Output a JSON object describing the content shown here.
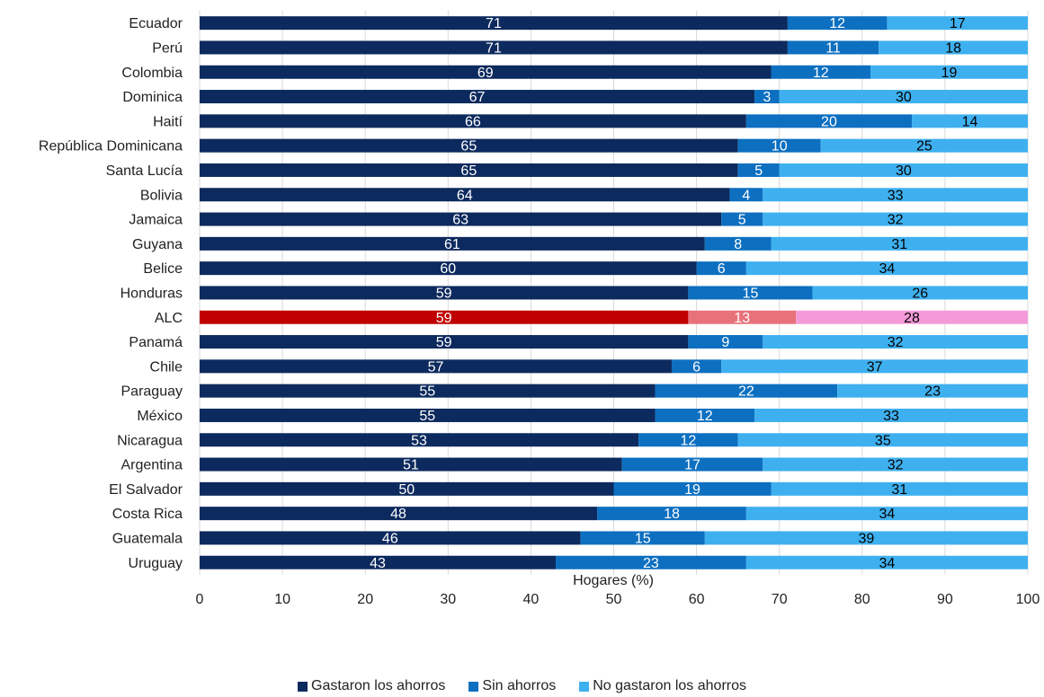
{
  "chart_data": {
    "type": "bar",
    "orientation": "horizontal",
    "stacked": true,
    "xlabel": "Hogares (%)",
    "xlim": [
      0,
      100
    ],
    "xticks": [
      0,
      10,
      20,
      30,
      40,
      50,
      60,
      70,
      80,
      90,
      100
    ],
    "grid": "vertical",
    "legend_position": "bottom",
    "categories": [
      "Ecuador",
      "Perú",
      "Colombia",
      "Dominica",
      "Haití",
      "República Dominicana",
      "Santa Lucía",
      "Bolivia",
      "Jamaica",
      "Guyana",
      "Belice",
      "Honduras",
      "ALC",
      "Panamá",
      "Chile",
      "Paraguay",
      "México",
      "Nicaragua",
      "Argentina",
      "El Salvador",
      "Costa Rica",
      "Guatemala",
      "Uruguay"
    ],
    "series": [
      {
        "name": "Gastaron los ahorros",
        "color": "#0d2a5e",
        "highlight_color": "#c00000",
        "label_color": "#ffffff",
        "values": [
          71,
          71,
          69,
          67,
          66,
          65,
          65,
          64,
          63,
          61,
          60,
          59,
          59,
          59,
          57,
          55,
          55,
          53,
          51,
          50,
          48,
          46,
          43
        ]
      },
      {
        "name": "Sin ahorros",
        "color": "#0d6fc0",
        "highlight_color": "#e8727a",
        "label_color": "#ffffff",
        "values": [
          12,
          11,
          12,
          3,
          20,
          10,
          5,
          4,
          5,
          8,
          6,
          15,
          13,
          9,
          6,
          22,
          12,
          12,
          17,
          19,
          18,
          15,
          23
        ]
      },
      {
        "name": "No gastaron los ahorros",
        "color": "#3fb0ef",
        "highlight_color": "#f49ad9",
        "label_color": "#000000",
        "values": [
          17,
          18,
          19,
          30,
          14,
          25,
          30,
          33,
          32,
          31,
          34,
          26,
          28,
          32,
          37,
          23,
          33,
          35,
          32,
          31,
          34,
          39,
          34
        ]
      }
    ],
    "highlight_category": "ALC"
  }
}
